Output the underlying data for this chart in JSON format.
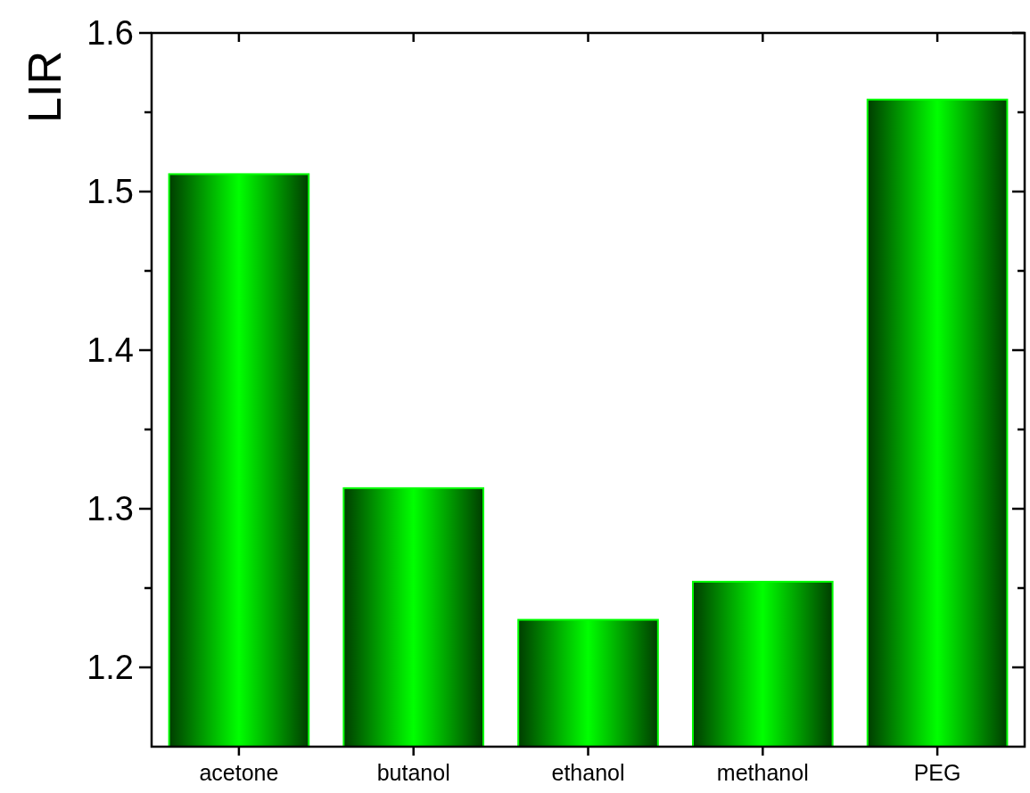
{
  "chart_data": {
    "type": "bar",
    "ylabel": "LIR",
    "categories": [
      "acetone",
      "butanol",
      "ethanol",
      "methanol",
      "PEG"
    ],
    "values": [
      1.511,
      1.313,
      1.23,
      1.254,
      1.558
    ],
    "color": "#00ff00",
    "ylim": [
      1.15,
      1.6
    ],
    "yticks": [
      1.2,
      {
        "value": 1.25,
        "label": null
      },
      1.3,
      {
        "value": 1.35,
        "label": null
      },
      1.4,
      {
        "value": 1.45,
        "label": null
      },
      1.5,
      {
        "value": 1.55,
        "label": null
      },
      1.6
    ],
    "grid": false
  }
}
